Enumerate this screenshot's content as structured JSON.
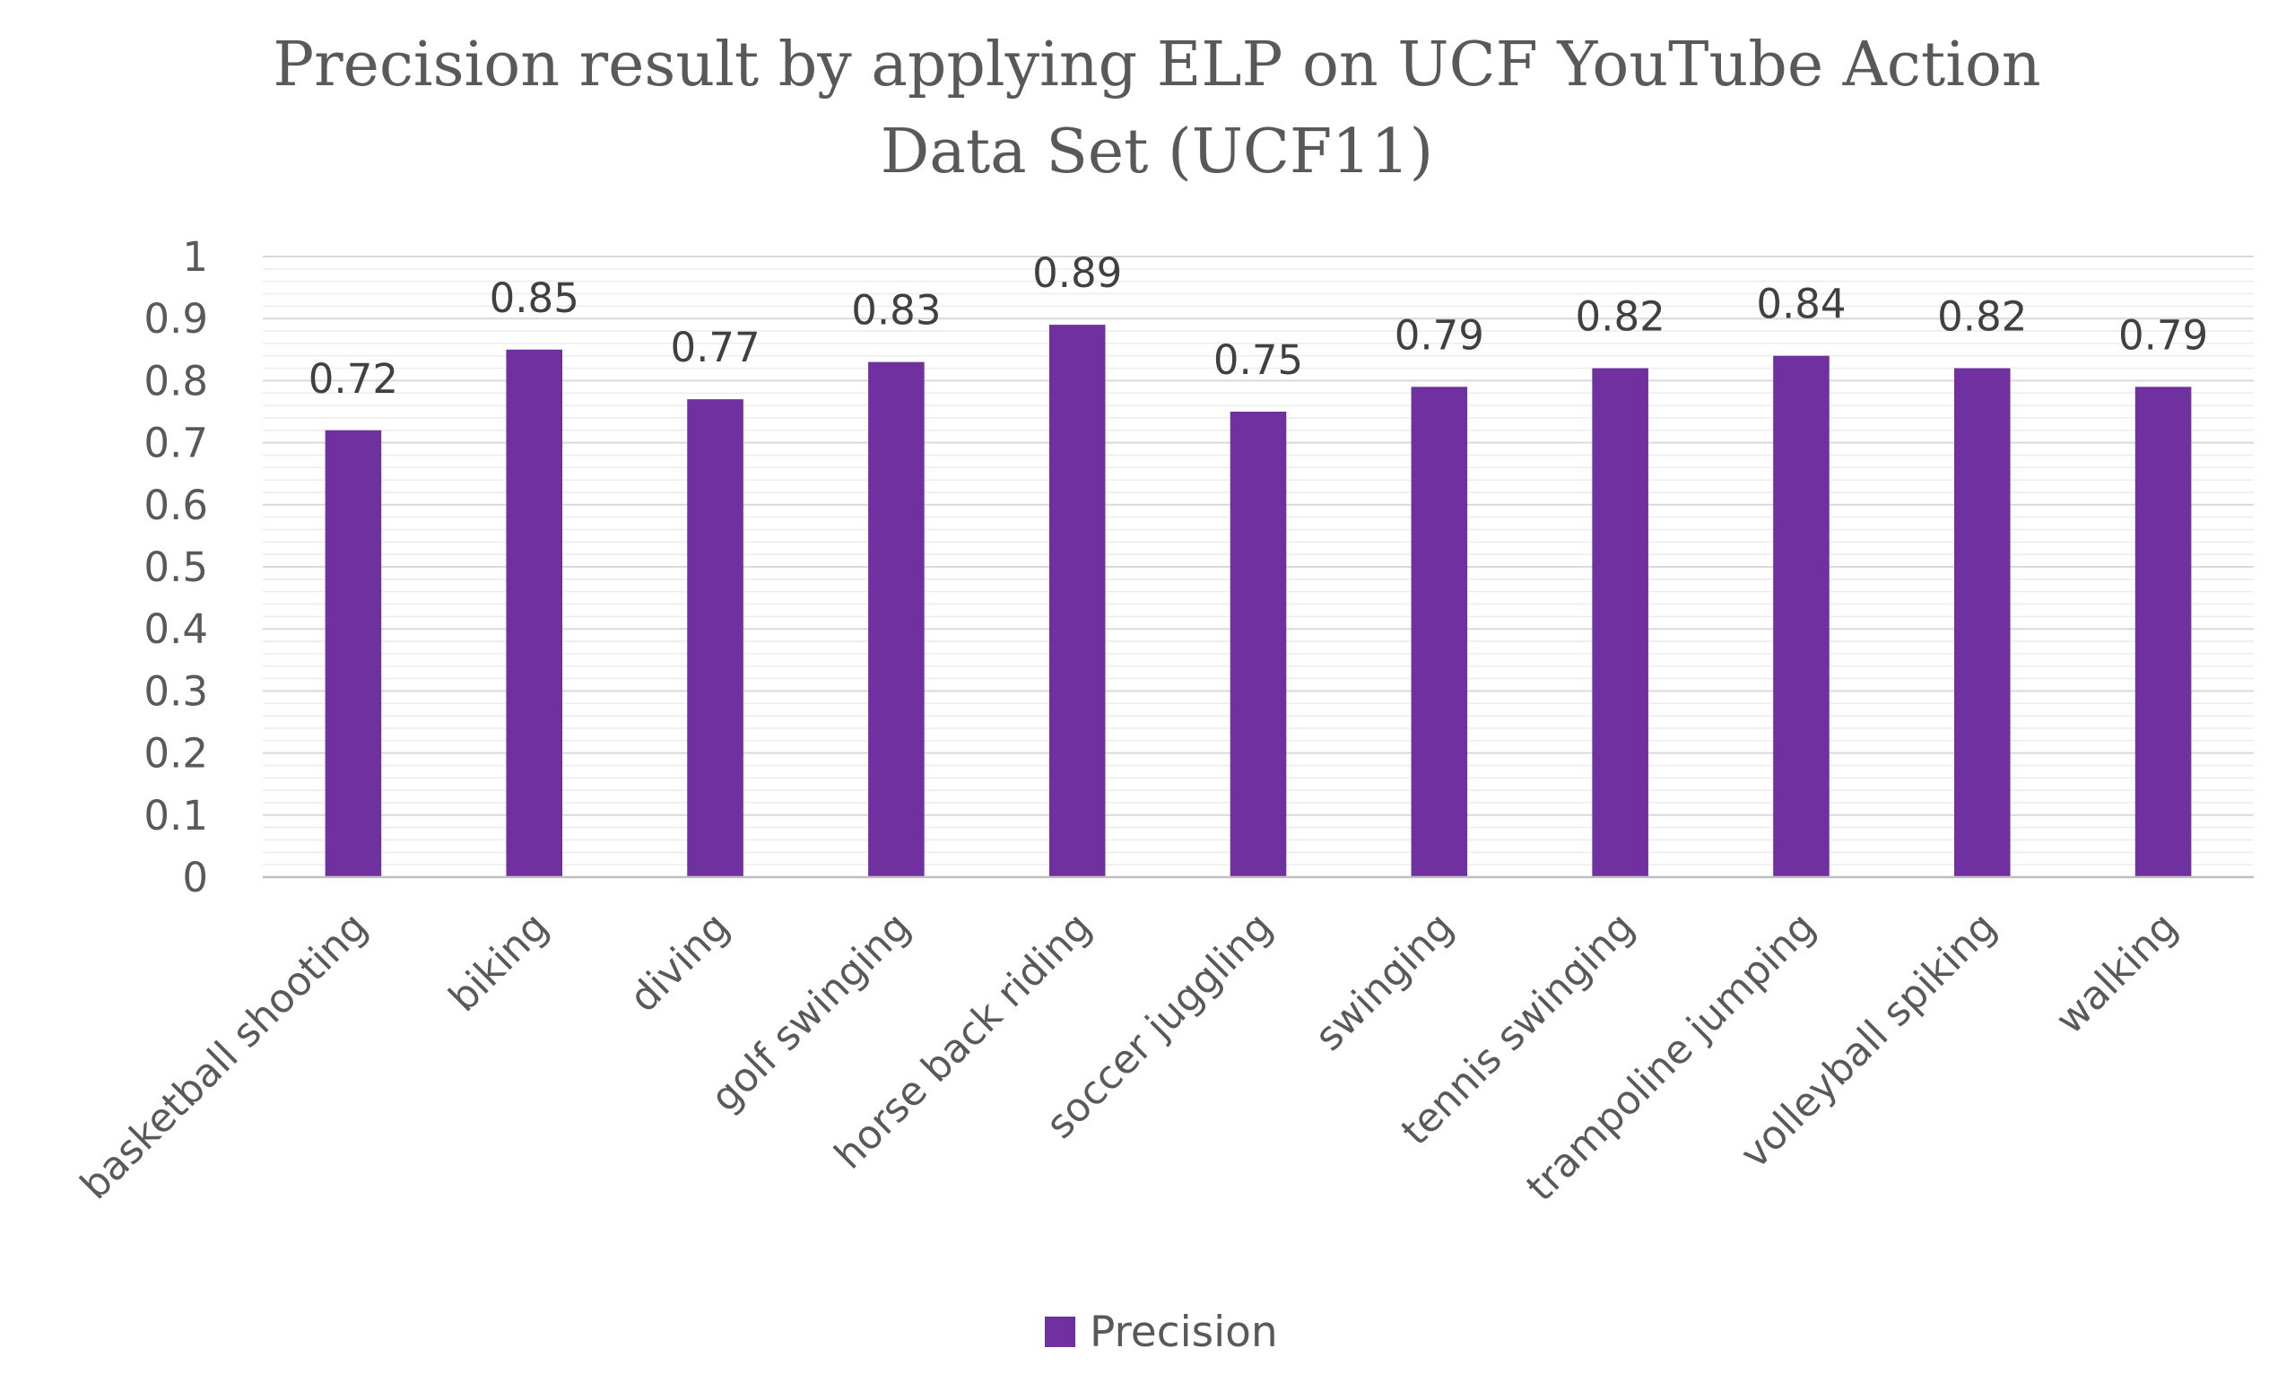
{
  "chart_data": {
    "type": "bar",
    "title_lines": [
      "Precision result by applying ELP on UCF YouTube Action",
      "Data Set (UCF11)"
    ],
    "categories": [
      "basketball shooting",
      "biking",
      "diving",
      "golf swinging",
      "horse back riding",
      "soccer juggling",
      "swinging",
      "tennis swinging",
      "trampoline jumping",
      "volleyball spiking",
      "walking"
    ],
    "series": [
      {
        "name": "Precision",
        "color": "#7030a0",
        "values": [
          0.72,
          0.85,
          0.77,
          0.83,
          0.89,
          0.75,
          0.79,
          0.82,
          0.84,
          0.82,
          0.79
        ],
        "labels": [
          "0.72",
          "0.85",
          "0.77",
          "0.83",
          "0.89",
          "0.75",
          "0.79",
          "0.82",
          "0.84",
          "0.82",
          "0.79"
        ]
      }
    ],
    "y_ticks": [
      "0",
      "0.1",
      "0.2",
      "0.3",
      "0.4",
      "0.5",
      "0.6",
      "0.7",
      "0.8",
      "0.9",
      "1"
    ],
    "ylim": [
      0,
      1
    ],
    "y_major_step": 0.1,
    "y_minor_step": 0.02,
    "xlabel": "",
    "ylabel": "",
    "grid": true,
    "legend_position": "bottom"
  }
}
